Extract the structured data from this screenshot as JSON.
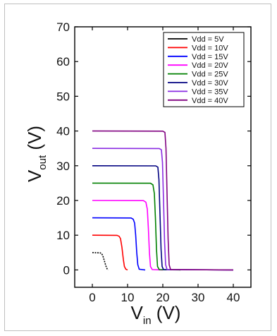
{
  "chart_data": {
    "type": "line",
    "x_axis": {
      "label_main": "V",
      "label_sub": "in",
      "label_unit": " (V)",
      "range": [
        -5,
        45
      ],
      "ticks": [
        0,
        10,
        20,
        30,
        40
      ],
      "tick_labels": [
        "0",
        "10",
        "20",
        "30",
        "40"
      ]
    },
    "y_axis": {
      "label_main": "V",
      "label_sub": "out",
      "label_unit": " (V)",
      "range": [
        -5,
        70
      ],
      "ticks": [
        0,
        10,
        20,
        30,
        40,
        50,
        60,
        70
      ],
      "tick_labels": [
        "0",
        "10",
        "20",
        "30",
        "40",
        "50",
        "60",
        "70"
      ]
    },
    "grid": false,
    "legend_position": "top-right",
    "series": [
      {
        "name": "Vdd = 5V",
        "vdd": 5,
        "color": "#000000",
        "points": [
          [
            0,
            5
          ],
          [
            2.3,
            4.9
          ],
          [
            2.7,
            4.6
          ],
          [
            3.0,
            4.0
          ],
          [
            3.3,
            3.0
          ],
          [
            3.6,
            2.0
          ],
          [
            3.9,
            1.0
          ],
          [
            4.2,
            0.3
          ],
          [
            4.5,
            0
          ]
        ],
        "dashed": true
      },
      {
        "name": "Vdd = 10V",
        "vdd": 10,
        "color": "#ff0000",
        "points": [
          [
            0,
            10
          ],
          [
            7.0,
            9.95
          ],
          [
            7.6,
            9.7
          ],
          [
            8.0,
            9.0
          ],
          [
            8.4,
            6.5
          ],
          [
            8.8,
            3.0
          ],
          [
            9.1,
            1.0
          ],
          [
            9.5,
            0.2
          ],
          [
            10,
            0
          ]
        ]
      },
      {
        "name": "Vdd = 15V",
        "vdd": 15,
        "color": "#0000ff",
        "points": [
          [
            0,
            15
          ],
          [
            11.0,
            14.95
          ],
          [
            11.6,
            14.6
          ],
          [
            12.0,
            13.5
          ],
          [
            12.3,
            10.0
          ],
          [
            12.6,
            5.0
          ],
          [
            12.9,
            1.5
          ],
          [
            13.3,
            0.2
          ],
          [
            15,
            0
          ]
        ]
      },
      {
        "name": "Vdd = 20V",
        "vdd": 20,
        "color": "#ff00ff",
        "points": [
          [
            0,
            20
          ],
          [
            14.5,
            19.95
          ],
          [
            15.2,
            19.5
          ],
          [
            15.6,
            17.5
          ],
          [
            15.9,
            12.0
          ],
          [
            16.2,
            5.0
          ],
          [
            16.5,
            1.0
          ],
          [
            17.0,
            0.1
          ],
          [
            20,
            0
          ]
        ]
      },
      {
        "name": "Vdd = 25V",
        "vdd": 25,
        "color": "#008000",
        "points": [
          [
            0,
            25
          ],
          [
            16.5,
            24.95
          ],
          [
            17.2,
            24.5
          ],
          [
            17.6,
            22.0
          ],
          [
            17.9,
            15.0
          ],
          [
            18.2,
            6.0
          ],
          [
            18.5,
            1.0
          ],
          [
            19.0,
            0.1
          ],
          [
            25,
            0
          ]
        ]
      },
      {
        "name": "Vdd = 30V",
        "vdd": 30,
        "color": "#000080",
        "points": [
          [
            0,
            30
          ],
          [
            18.0,
            29.95
          ],
          [
            18.6,
            29.6
          ],
          [
            18.9,
            26.0
          ],
          [
            19.2,
            16.0
          ],
          [
            19.5,
            6.0
          ],
          [
            19.8,
            1.0
          ],
          [
            20.2,
            0.1
          ],
          [
            40,
            0
          ]
        ]
      },
      {
        "name": "Vdd = 35V",
        "vdd": 35,
        "color": "#8a2be2",
        "points": [
          [
            0,
            35
          ],
          [
            19.0,
            34.95
          ],
          [
            19.6,
            34.6
          ],
          [
            19.9,
            31.0
          ],
          [
            20.2,
            20.0
          ],
          [
            20.5,
            8.0
          ],
          [
            20.8,
            1.5
          ],
          [
            21.2,
            0.1
          ],
          [
            40,
            0
          ]
        ]
      },
      {
        "name": "Vdd = 40V",
        "vdd": 40,
        "color": "#800080",
        "points": [
          [
            0,
            40
          ],
          [
            20.0,
            39.95
          ],
          [
            20.6,
            39.6
          ],
          [
            20.9,
            35.0
          ],
          [
            21.2,
            22.0
          ],
          [
            21.5,
            9.0
          ],
          [
            21.8,
            1.5
          ],
          [
            22.2,
            0.1
          ],
          [
            40,
            0
          ]
        ]
      }
    ]
  }
}
